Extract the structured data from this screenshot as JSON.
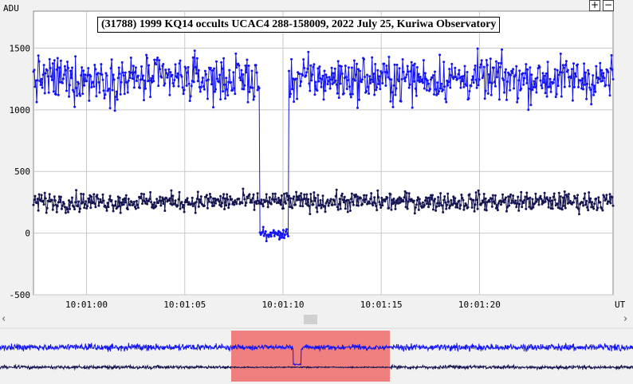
{
  "title": "(31788) 1999 KQ14 occults UCAC4 288-158009, 2022 July 25, Kuriwa Observatory",
  "controls": {
    "zoom_in": "+",
    "zoom_out": "−",
    "scroll_left": "‹",
    "scroll_right": "›"
  },
  "colors": {
    "target": "#1414f0",
    "comparison": "#141450",
    "overview_highlight": "#f08080",
    "grid": "#c8c8c8"
  },
  "chart_data": {
    "type": "line",
    "ylabel": "ADU",
    "xlabel": "UT",
    "ylim": [
      -500,
      1800
    ],
    "xlim": [
      "10:00:57.3",
      "10:01:26.8"
    ],
    "y_ticks": [
      -500,
      0,
      500,
      1000,
      1500
    ],
    "x_ticks": [
      "10:01:00",
      "10:01:05",
      "10:01:10",
      "10:01:15",
      "10:01:20"
    ],
    "grid": true,
    "series": [
      {
        "baseline": 1250,
        "noise": 130,
        "event": {
          "start": "10:01:08.8",
          "end": "10:01:10.3",
          "level": -10
        }
      },
      {
        "baseline": 255,
        "noise": 55
      }
    ],
    "overview": {
      "highlight_range": [
        "10:00:57.3",
        "10:01:26.8"
      ]
    }
  }
}
